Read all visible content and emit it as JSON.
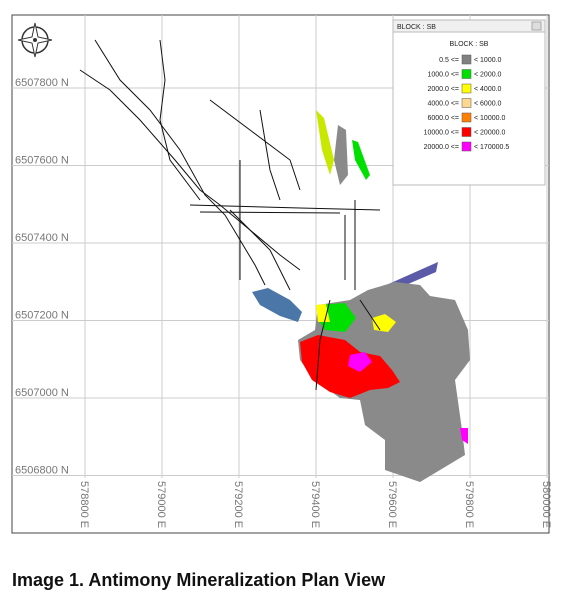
{
  "northing_labels": [
    "6507800 N",
    "6507600 N",
    "6507400 N",
    "6507200 N",
    "6507000 N",
    "6506800 N"
  ],
  "easting_labels": [
    "578800 E",
    "579000 E",
    "579200 E",
    "579400 E",
    "579600 E",
    "579800 E",
    "580000 E"
  ],
  "legend": {
    "window_title": "BLOCK : SB",
    "title": "BLOCK : SB",
    "entries": [
      {
        "from": "0.5 <=",
        "to": "< 1000.0",
        "color": "#808080"
      },
      {
        "from": "1000.0 <=",
        "to": "< 2000.0",
        "color": "#00e000"
      },
      {
        "from": "2000.0 <=",
        "to": "< 4000.0",
        "color": "#ffff00"
      },
      {
        "from": "4000.0 <=",
        "to": "< 6000.0",
        "color": "#ffd890"
      },
      {
        "from": "6000.0 <=",
        "to": "< 10000.0",
        "color": "#ff8000"
      },
      {
        "from": "10000.0 <=",
        "to": "< 20000.0",
        "color": "#ff0000"
      },
      {
        "from": "20000.0 <=",
        "to": "< 170000.5",
        "color": "#ff00ff"
      }
    ]
  },
  "caption": "Image 1. Antimony Mineralization Plan View"
}
